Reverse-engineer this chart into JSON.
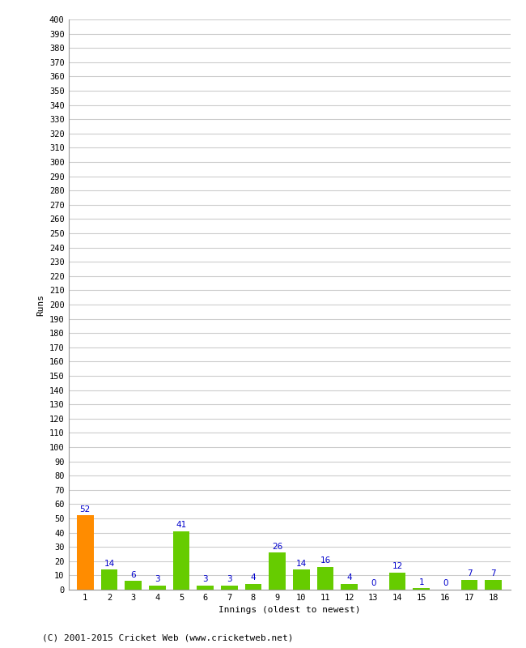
{
  "innings": [
    1,
    2,
    3,
    4,
    5,
    6,
    7,
    8,
    9,
    10,
    11,
    12,
    13,
    14,
    15,
    16,
    17,
    18
  ],
  "runs": [
    52,
    14,
    6,
    3,
    41,
    3,
    3,
    4,
    26,
    14,
    16,
    4,
    0,
    12,
    1,
    0,
    7,
    7
  ],
  "bar_colors": [
    "#ff8c00",
    "#66cc00",
    "#66cc00",
    "#66cc00",
    "#66cc00",
    "#66cc00",
    "#66cc00",
    "#66cc00",
    "#66cc00",
    "#66cc00",
    "#66cc00",
    "#66cc00",
    "#66cc00",
    "#66cc00",
    "#66cc00",
    "#66cc00",
    "#66cc00",
    "#66cc00"
  ],
  "ylabel": "Runs",
  "xlabel": "Innings (oldest to newest)",
  "ytick_step": 10,
  "ymax": 400,
  "background_color": "#ffffff",
  "grid_color": "#cccccc",
  "label_color": "#0000cc",
  "footer": "(C) 2001-2015 Cricket Web (www.cricketweb.net)"
}
